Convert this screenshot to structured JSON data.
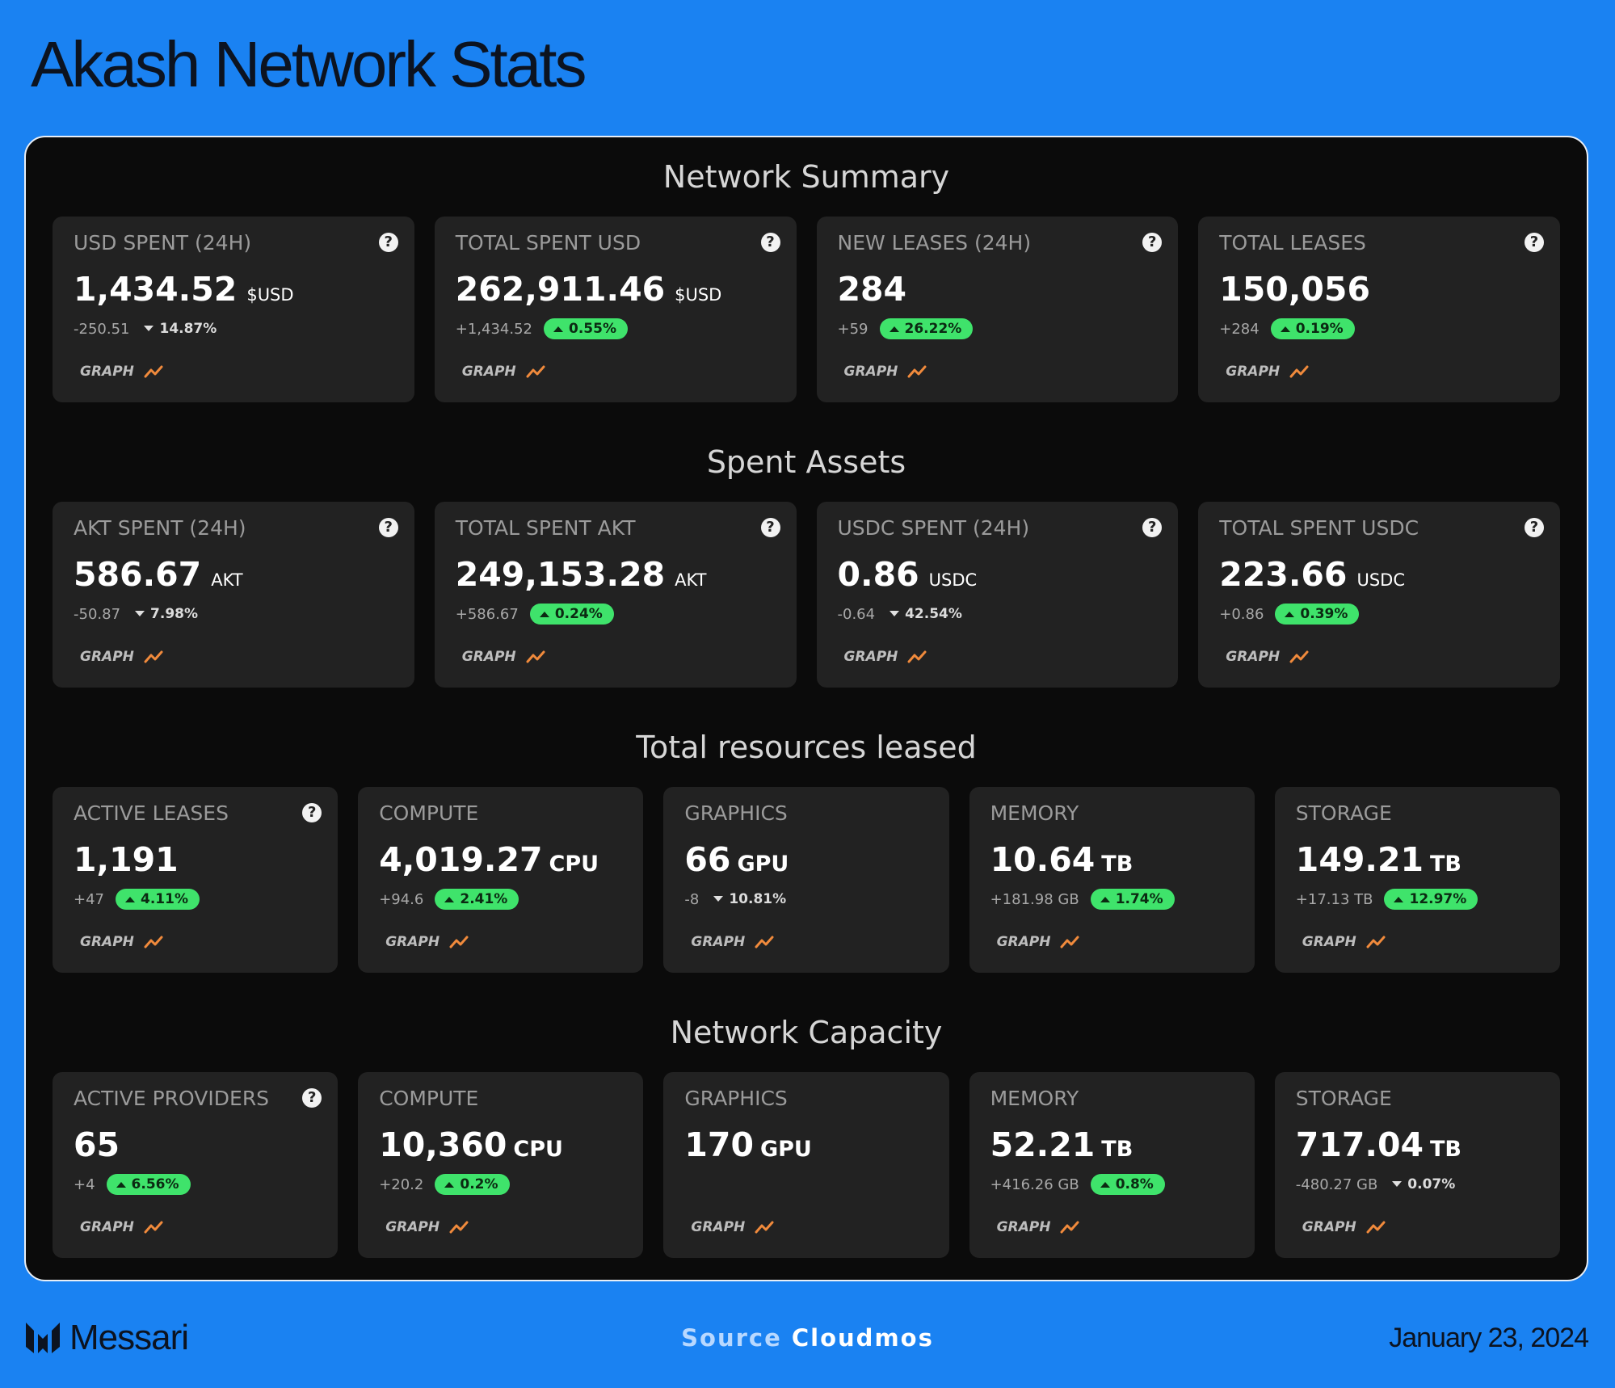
{
  "header": {
    "title": "Akash Network Stats"
  },
  "sections": [
    {
      "title": "Network Summary",
      "cards": [
        {
          "label": "USD SPENT (24H)",
          "value": "1,434.52",
          "unit": "$USD",
          "change": "-250.51",
          "pct": "14.87%",
          "trend": "down",
          "help": "?",
          "link": "GRAPH"
        },
        {
          "label": "TOTAL SPENT USD",
          "value": "262,911.46",
          "unit": "$USD",
          "change": "+1,434.52",
          "pct": "0.55%",
          "trend": "up",
          "help": "?",
          "link": "GRAPH"
        },
        {
          "label": "NEW LEASES (24H)",
          "value": "284",
          "change": "+59",
          "pct": "26.22%",
          "trend": "up",
          "help": "?",
          "link": "GRAPH"
        },
        {
          "label": "TOTAL LEASES",
          "value": "150,056",
          "change": "+284",
          "pct": "0.19%",
          "trend": "up",
          "help": "?",
          "link": "GRAPH"
        }
      ]
    },
    {
      "title": "Spent Assets",
      "cards": [
        {
          "label": "AKT SPENT (24H)",
          "value": "586.67",
          "unit": "AKT",
          "change": "-50.87",
          "pct": "7.98%",
          "trend": "down",
          "help": "?",
          "link": "GRAPH"
        },
        {
          "label": "TOTAL SPENT AKT",
          "value": "249,153.28",
          "unit": "AKT",
          "change": "+586.67",
          "pct": "0.24%",
          "trend": "up",
          "help": "?",
          "link": "GRAPH"
        },
        {
          "label": "USDC SPENT (24H)",
          "value": "0.86",
          "unit": "USDC",
          "change": "-0.64",
          "pct": "42.54%",
          "trend": "down",
          "help": "?",
          "link": "GRAPH"
        },
        {
          "label": "TOTAL SPENT USDC",
          "value": "223.66",
          "unit": "USDC",
          "change": "+0.86",
          "pct": "0.39%",
          "trend": "up",
          "help": "?",
          "link": "GRAPH"
        }
      ]
    },
    {
      "title": "Total resources leased",
      "cards": [
        {
          "label": "ACTIVE LEASES",
          "value": "1,191",
          "change": "+47",
          "pct": "4.11%",
          "trend": "up",
          "help": "?",
          "link": "GRAPH"
        },
        {
          "label": "COMPUTE",
          "value": "4,019.27",
          "unit": "CPU",
          "change": "+94.6",
          "pct": "2.41%",
          "trend": "up",
          "link": "GRAPH"
        },
        {
          "label": "GRAPHICS",
          "value": "66",
          "unit": "GPU",
          "change": "-8",
          "pct": "10.81%",
          "trend": "down",
          "link": "GRAPH"
        },
        {
          "label": "MEMORY",
          "value": "10.64",
          "unit": "TB",
          "change": "+181.98 GB",
          "pct": "1.74%",
          "trend": "up",
          "link": "GRAPH"
        },
        {
          "label": "STORAGE",
          "value": "149.21",
          "unit": "TB",
          "change": "+17.13 TB",
          "pct": "12.97%",
          "trend": "up",
          "link": "GRAPH"
        }
      ]
    },
    {
      "title": "Network Capacity",
      "cards": [
        {
          "label": "ACTIVE PROVIDERS",
          "value": "65",
          "change": "+4",
          "pct": "6.56%",
          "trend": "up",
          "help": "?",
          "link": "GRAPH"
        },
        {
          "label": "COMPUTE",
          "value": "10,360",
          "unit": "CPU",
          "change": "+20.2",
          "pct": "0.2%",
          "trend": "up",
          "link": "GRAPH"
        },
        {
          "label": "GRAPHICS",
          "value": "170",
          "unit": "GPU",
          "link": "GRAPH"
        },
        {
          "label": "MEMORY",
          "value": "52.21",
          "unit": "TB",
          "change": "+416.26 GB",
          "pct": "0.8%",
          "trend": "up",
          "link": "GRAPH"
        },
        {
          "label": "STORAGE",
          "value": "717.04",
          "unit": "TB",
          "change": "-480.27 GB",
          "pct": "0.07%",
          "trend": "down",
          "link": "GRAPH"
        }
      ]
    }
  ],
  "footer": {
    "brand": "Messari",
    "source_label": "Source",
    "source": "Cloudmos",
    "date": "January 23, 2024"
  }
}
